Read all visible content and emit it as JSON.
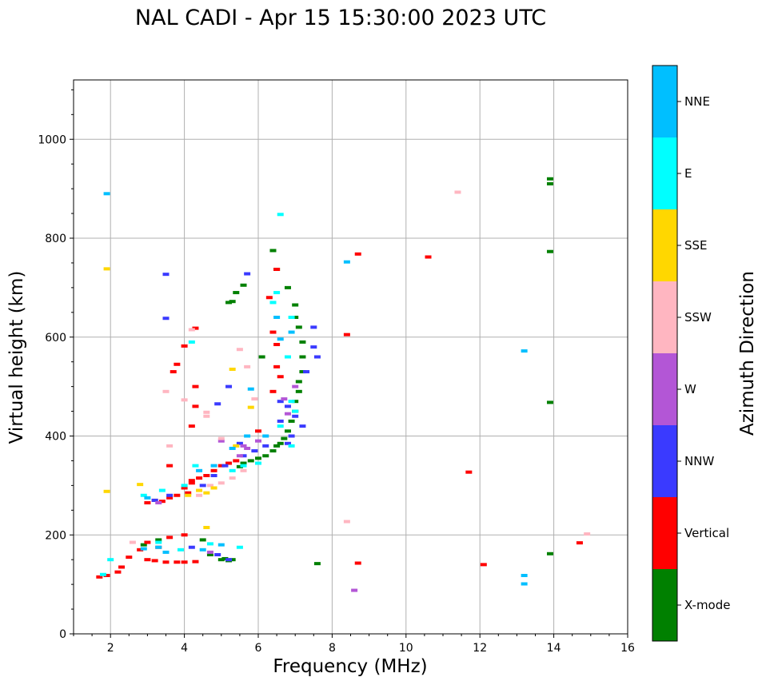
{
  "chart_data": {
    "type": "scatter",
    "title": "NAL CADI - Apr 15 15:30:00 2023 UTC",
    "xlabel": "Frequency (MHz)",
    "ylabel": "Virtual height (km)",
    "xlim": [
      1,
      16
    ],
    "ylim": [
      0,
      1120
    ],
    "xticks": [
      "2",
      "4",
      "6",
      "8",
      "10",
      "12",
      "14",
      "16"
    ],
    "yticks": [
      "0",
      "200",
      "400",
      "600",
      "800",
      "1000"
    ],
    "grid": true,
    "colorbar": {
      "label": "Azimuth Direction",
      "categories": [
        "X-mode",
        "Vertical",
        "NNW",
        "W",
        "SSW",
        "SSE",
        "E",
        "NNE"
      ],
      "colors": [
        "#008000",
        "#ff0000",
        "#3a3aff",
        "#b356d6",
        "#ffb6c1",
        "#ffd700",
        "#00ffff",
        "#00bfff"
      ]
    },
    "series": [
      {
        "name": "X-mode",
        "points": [
          [
            5.0,
            150
          ],
          [
            5.1,
            152
          ],
          [
            5.2,
            148
          ],
          [
            5.3,
            150
          ],
          [
            5.5,
            338
          ],
          [
            5.6,
            345
          ],
          [
            5.8,
            350
          ],
          [
            6.0,
            355
          ],
          [
            6.2,
            360
          ],
          [
            6.4,
            370
          ],
          [
            6.5,
            380
          ],
          [
            6.6,
            385
          ],
          [
            6.7,
            395
          ],
          [
            6.8,
            410
          ],
          [
            6.9,
            430
          ],
          [
            7.0,
            450
          ],
          [
            7.0,
            470
          ],
          [
            7.1,
            490
          ],
          [
            7.1,
            510
          ],
          [
            7.2,
            530
          ],
          [
            7.2,
            560
          ],
          [
            7.2,
            590
          ],
          [
            7.1,
            620
          ],
          [
            7.0,
            640
          ],
          [
            7.0,
            665
          ],
          [
            6.8,
            700
          ],
          [
            6.5,
            737
          ],
          [
            6.4,
            775
          ],
          [
            5.3,
            672
          ],
          [
            5.2,
            670
          ],
          [
            5.6,
            705
          ],
          [
            5.4,
            690
          ],
          [
            4.7,
            160
          ],
          [
            4.5,
            190
          ],
          [
            3.3,
            190
          ],
          [
            2.9,
            180
          ],
          [
            6.1,
            560
          ],
          [
            7.6,
            142
          ],
          [
            13.9,
            920
          ],
          [
            13.9,
            910
          ],
          [
            13.9,
            773
          ],
          [
            13.9,
            468
          ],
          [
            13.9,
            162
          ]
        ]
      },
      {
        "name": "Vertical",
        "points": [
          [
            1.7,
            115
          ],
          [
            1.9,
            118
          ],
          [
            2.2,
            125
          ],
          [
            2.3,
            135
          ],
          [
            2.5,
            155
          ],
          [
            2.8,
            170
          ],
          [
            3.0,
            150
          ],
          [
            3.2,
            148
          ],
          [
            3.5,
            145
          ],
          [
            3.8,
            145
          ],
          [
            4.0,
            145
          ],
          [
            4.3,
            146
          ],
          [
            3.0,
            265
          ],
          [
            3.2,
            270
          ],
          [
            3.4,
            268
          ],
          [
            3.6,
            275
          ],
          [
            3.8,
            280
          ],
          [
            4.0,
            295
          ],
          [
            4.2,
            305
          ],
          [
            4.4,
            315
          ],
          [
            4.6,
            320
          ],
          [
            4.8,
            330
          ],
          [
            5.0,
            340
          ],
          [
            5.2,
            345
          ],
          [
            5.4,
            350
          ],
          [
            3.0,
            185
          ],
          [
            3.3,
            175
          ],
          [
            3.6,
            195
          ],
          [
            4.0,
            200
          ],
          [
            4.1,
            285
          ],
          [
            4.2,
            310
          ],
          [
            3.8,
            545
          ],
          [
            3.7,
            530
          ],
          [
            4.3,
            500
          ],
          [
            4.3,
            460
          ],
          [
            4.2,
            420
          ],
          [
            4.3,
            618
          ],
          [
            4.0,
            582
          ],
          [
            3.6,
            340
          ],
          [
            6.4,
            490
          ],
          [
            6.5,
            540
          ],
          [
            6.5,
            585
          ],
          [
            6.4,
            610
          ],
          [
            6.5,
            737
          ],
          [
            6.3,
            680
          ],
          [
            6.6,
            520
          ],
          [
            8.4,
            605
          ],
          [
            8.7,
            768
          ],
          [
            10.6,
            762
          ],
          [
            11.7,
            327
          ],
          [
            12.1,
            140
          ],
          [
            14.7,
            184
          ],
          [
            8.7,
            143
          ],
          [
            6.0,
            410
          ]
        ]
      },
      {
        "name": "NNW",
        "points": [
          [
            3.5,
            727
          ],
          [
            3.5,
            638
          ],
          [
            5.7,
            728
          ],
          [
            7.5,
            620
          ],
          [
            7.5,
            580
          ],
          [
            7.6,
            560
          ],
          [
            7.3,
            530
          ],
          [
            7.2,
            420
          ],
          [
            7.0,
            440
          ],
          [
            6.8,
            460
          ],
          [
            6.6,
            470
          ],
          [
            6.9,
            400
          ],
          [
            6.8,
            385
          ],
          [
            5.9,
            370
          ],
          [
            5.6,
            360
          ],
          [
            5.1,
            340
          ],
          [
            4.8,
            320
          ],
          [
            4.5,
            300
          ],
          [
            4.2,
            175
          ],
          [
            4.9,
            160
          ],
          [
            5.2,
            150
          ],
          [
            4.9,
            465
          ],
          [
            5.2,
            500
          ],
          [
            5.5,
            385
          ],
          [
            6.2,
            380
          ],
          [
            6.6,
            430
          ],
          [
            3.6,
            280
          ],
          [
            3.2,
            270
          ]
        ]
      },
      {
        "name": "W",
        "points": [
          [
            5.6,
            380
          ],
          [
            5.7,
            375
          ],
          [
            5.5,
            360
          ],
          [
            6.0,
            390
          ],
          [
            6.7,
            475
          ],
          [
            7.0,
            500
          ],
          [
            6.8,
            445
          ],
          [
            8.6,
            88
          ],
          [
            3.3,
            265
          ],
          [
            4.7,
            165
          ],
          [
            5.0,
            390
          ]
        ]
      },
      {
        "name": "SSW",
        "points": [
          [
            3.5,
            490
          ],
          [
            3.6,
            380
          ],
          [
            4.0,
            473
          ],
          [
            4.6,
            448
          ],
          [
            5.0,
            395
          ],
          [
            5.5,
            575
          ],
          [
            5.9,
            475
          ],
          [
            4.4,
            280
          ],
          [
            4.7,
            300
          ],
          [
            5.0,
            305
          ],
          [
            5.3,
            315
          ],
          [
            5.6,
            330
          ],
          [
            8.4,
            227
          ],
          [
            11.4,
            893
          ],
          [
            14.9,
            202
          ],
          [
            2.6,
            185
          ],
          [
            4.6,
            440
          ],
          [
            5.7,
            540
          ],
          [
            4.2,
            615
          ]
        ]
      },
      {
        "name": "SSE",
        "points": [
          [
            1.9,
            738
          ],
          [
            1.9,
            288
          ],
          [
            2.8,
            302
          ],
          [
            4.1,
            280
          ],
          [
            4.4,
            290
          ],
          [
            4.6,
            285
          ],
          [
            4.8,
            295
          ],
          [
            5.3,
            535
          ],
          [
            5.8,
            458
          ],
          [
            4.6,
            215
          ],
          [
            5.4,
            380
          ]
        ]
      },
      {
        "name": "E",
        "points": [
          [
            6.6,
            848
          ],
          [
            4.2,
            590
          ],
          [
            6.4,
            670
          ],
          [
            6.5,
            690
          ],
          [
            6.9,
            640
          ],
          [
            6.8,
            560
          ],
          [
            6.9,
            470
          ],
          [
            7.0,
            450
          ],
          [
            6.6,
            420
          ],
          [
            6.9,
            380
          ],
          [
            6.0,
            345
          ],
          [
            5.6,
            340
          ],
          [
            5.3,
            330
          ],
          [
            4.3,
            340
          ],
          [
            4.0,
            300
          ],
          [
            3.4,
            290
          ],
          [
            2.9,
            280
          ],
          [
            3.3,
            185
          ],
          [
            3.9,
            170
          ],
          [
            5.5,
            175
          ],
          [
            4.7,
            182
          ],
          [
            1.8,
            120
          ],
          [
            2.0,
            150
          ]
        ]
      },
      {
        "name": "NNE",
        "points": [
          [
            1.9,
            890
          ],
          [
            8.4,
            752
          ],
          [
            13.2,
            572
          ],
          [
            13.2,
            118
          ],
          [
            13.2,
            101
          ],
          [
            6.6,
            596
          ],
          [
            6.5,
            640
          ],
          [
            6.2,
            400
          ],
          [
            5.7,
            400
          ],
          [
            5.3,
            375
          ],
          [
            4.8,
            340
          ],
          [
            4.4,
            330
          ],
          [
            5.0,
            180
          ],
          [
            4.5,
            170
          ],
          [
            3.5,
            165
          ],
          [
            3.3,
            175
          ],
          [
            2.9,
            172
          ],
          [
            3.0,
            275
          ],
          [
            5.8,
            495
          ],
          [
            6.9,
            610
          ]
        ]
      }
    ]
  }
}
